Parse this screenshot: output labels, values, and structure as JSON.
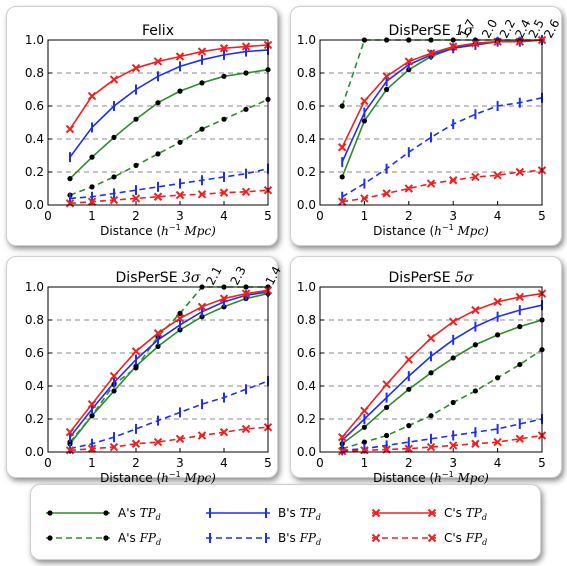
{
  "colors": {
    "A": "#2e8b2e",
    "B": "#1f2ff0",
    "C": "#f02020",
    "grid": "#888888"
  },
  "x_axis_label_prefix": "Distance (",
  "x_axis_label_unit": "h",
  "x_axis_label_exp": "−1",
  "x_axis_label_suffix": " Mpc)",
  "legend": {
    "items": [
      {
        "key": "A_TP",
        "prefix": "A's ",
        "var": "TP",
        "sub": "d"
      },
      {
        "key": "B_TP",
        "prefix": "B's ",
        "var": "TP",
        "sub": "d"
      },
      {
        "key": "C_TP",
        "prefix": "C's ",
        "var": "TP",
        "sub": "d"
      },
      {
        "key": "A_FP",
        "prefix": "A's ",
        "var": "FP",
        "sub": "d"
      },
      {
        "key": "B_FP",
        "prefix": "B's ",
        "var": "FP",
        "sub": "d"
      },
      {
        "key": "C_FP",
        "prefix": "C's ",
        "var": "FP",
        "sub": "d"
      }
    ]
  },
  "chart_data": [
    {
      "type": "line",
      "title": "Felix",
      "title_sigma": "",
      "xlim": [
        0,
        5
      ],
      "ylim": [
        0,
        1
      ],
      "xticks": [
        0,
        1,
        2,
        3,
        4,
        5
      ],
      "yticks": [
        "0.0",
        "0.2",
        "0.4",
        "0.6",
        "0.8",
        "1.0"
      ],
      "x": [
        0.5,
        1.0,
        1.5,
        2.0,
        2.5,
        3.0,
        3.5,
        4.0,
        4.5,
        5.0
      ],
      "series": [
        {
          "key": "A_TP",
          "values": [
            0.16,
            0.29,
            0.41,
            0.52,
            0.62,
            0.69,
            0.74,
            0.78,
            0.8,
            0.82
          ]
        },
        {
          "key": "A_FP",
          "values": [
            0.06,
            0.11,
            0.17,
            0.24,
            0.31,
            0.38,
            0.46,
            0.52,
            0.58,
            0.64
          ]
        },
        {
          "key": "B_TP",
          "values": [
            0.29,
            0.47,
            0.6,
            0.7,
            0.78,
            0.84,
            0.88,
            0.91,
            0.93,
            0.94
          ]
        },
        {
          "key": "B_FP",
          "values": [
            0.04,
            0.05,
            0.07,
            0.09,
            0.11,
            0.13,
            0.15,
            0.17,
            0.19,
            0.22
          ]
        },
        {
          "key": "C_TP",
          "values": [
            0.46,
            0.66,
            0.76,
            0.83,
            0.87,
            0.9,
            0.93,
            0.95,
            0.96,
            0.97
          ]
        },
        {
          "key": "C_FP",
          "values": [
            0.01,
            0.02,
            0.03,
            0.04,
            0.05,
            0.06,
            0.065,
            0.075,
            0.08,
            0.09
          ]
        }
      ],
      "annotations": []
    },
    {
      "type": "line",
      "title": "DisPerSE ",
      "title_sigma": "1σ",
      "xlim": [
        0,
        5
      ],
      "ylim": [
        0,
        1
      ],
      "xticks": [
        0,
        1,
        2,
        3,
        4,
        5
      ],
      "yticks": [
        "0.0",
        "0.2",
        "0.4",
        "0.6",
        "0.8",
        "1.0"
      ],
      "x": [
        0.5,
        1.0,
        1.5,
        2.0,
        2.5,
        3.0,
        3.5,
        4.0,
        4.5,
        5.0
      ],
      "series": [
        {
          "key": "A_TP",
          "values": [
            0.17,
            0.51,
            0.7,
            0.82,
            0.9,
            0.95,
            0.98,
            0.99,
            0.99,
            1.0
          ]
        },
        {
          "key": "A_FP",
          "values": [
            0.6,
            1.0,
            1.0,
            1.0,
            1.0,
            1.0,
            1.0,
            1.0,
            1.0,
            1.0
          ]
        },
        {
          "key": "B_TP",
          "values": [
            0.26,
            0.56,
            0.75,
            0.85,
            0.91,
            0.95,
            0.97,
            0.99,
            0.99,
            1.0
          ]
        },
        {
          "key": "B_FP",
          "values": [
            0.05,
            0.13,
            0.22,
            0.32,
            0.41,
            0.49,
            0.55,
            0.6,
            0.62,
            0.65
          ]
        },
        {
          "key": "C_TP",
          "values": [
            0.35,
            0.63,
            0.78,
            0.87,
            0.92,
            0.96,
            0.98,
            0.99,
            0.99,
            1.0
          ]
        },
        {
          "key": "C_FP",
          "values": [
            0.02,
            0.04,
            0.07,
            0.1,
            0.13,
            0.15,
            0.17,
            0.18,
            0.2,
            0.21
          ]
        }
      ],
      "annotations": [
        {
          "text": "1.7",
          "x": 3.3,
          "y": 1.0
        },
        {
          "text": "2.0",
          "x": 3.8,
          "y": 1.0
        },
        {
          "text": "2.2",
          "x": 4.2,
          "y": 1.0
        },
        {
          "text": "2.4",
          "x": 4.55,
          "y": 1.0
        },
        {
          "text": "2.5",
          "x": 4.85,
          "y": 1.0
        },
        {
          "text": "2.6",
          "x": 5.2,
          "y": 1.0
        }
      ]
    },
    {
      "type": "line",
      "title": "DisPerSE ",
      "title_sigma": "3σ",
      "xlim": [
        0,
        5
      ],
      "ylim": [
        0,
        1
      ],
      "xticks": [
        0,
        1,
        2,
        3,
        4,
        5
      ],
      "yticks": [
        "0.0",
        "0.2",
        "0.4",
        "0.6",
        "0.8",
        "1.0"
      ],
      "x": [
        0.5,
        1.0,
        1.5,
        2.0,
        2.5,
        3.0,
        3.5,
        4.0,
        4.5,
        5.0
      ],
      "series": [
        {
          "key": "A_TP",
          "values": [
            0.05,
            0.22,
            0.37,
            0.52,
            0.64,
            0.74,
            0.82,
            0.88,
            0.93,
            0.96
          ]
        },
        {
          "key": "A_FP",
          "values": [
            0.06,
            0.22,
            0.41,
            0.51,
            0.7,
            0.84,
            1.0,
            1.0,
            1.0,
            1.0
          ]
        },
        {
          "key": "B_TP",
          "values": [
            0.09,
            0.26,
            0.42,
            0.56,
            0.68,
            0.77,
            0.85,
            0.91,
            0.95,
            0.97
          ]
        },
        {
          "key": "B_FP",
          "values": [
            0.02,
            0.05,
            0.09,
            0.14,
            0.19,
            0.24,
            0.29,
            0.33,
            0.38,
            0.43
          ]
        },
        {
          "key": "C_TP",
          "values": [
            0.12,
            0.29,
            0.46,
            0.61,
            0.72,
            0.81,
            0.88,
            0.93,
            0.96,
            0.98
          ]
        },
        {
          "key": "C_FP",
          "values": [
            0.01,
            0.02,
            0.03,
            0.05,
            0.06,
            0.08,
            0.1,
            0.12,
            0.14,
            0.15
          ]
        }
      ],
      "annotations": [
        {
          "text": "2.1",
          "x": 3.75,
          "y": 1.0
        },
        {
          "text": "2.3",
          "x": 4.3,
          "y": 1.0
        },
        {
          "text": "1.4",
          "x": 5.1,
          "y": 1.0
        }
      ]
    },
    {
      "type": "line",
      "title": "DisPerSE ",
      "title_sigma": "5σ",
      "xlim": [
        0,
        5
      ],
      "ylim": [
        0,
        1
      ],
      "xticks": [
        0,
        1,
        2,
        3,
        4,
        5
      ],
      "yticks": [
        "0.0",
        "0.2",
        "0.4",
        "0.6",
        "0.8",
        "1.0"
      ],
      "x": [
        0.5,
        1.0,
        1.5,
        2.0,
        2.5,
        3.0,
        3.5,
        4.0,
        4.5,
        5.0
      ],
      "series": [
        {
          "key": "A_TP",
          "values": [
            0.05,
            0.15,
            0.27,
            0.38,
            0.48,
            0.57,
            0.65,
            0.71,
            0.76,
            0.8
          ]
        },
        {
          "key": "A_FP",
          "values": [
            0.02,
            0.06,
            0.1,
            0.16,
            0.22,
            0.3,
            0.37,
            0.45,
            0.53,
            0.62
          ]
        },
        {
          "key": "B_TP",
          "values": [
            0.07,
            0.2,
            0.33,
            0.46,
            0.58,
            0.68,
            0.76,
            0.82,
            0.86,
            0.89
          ]
        },
        {
          "key": "B_FP",
          "values": [
            0.01,
            0.02,
            0.04,
            0.06,
            0.08,
            0.1,
            0.12,
            0.14,
            0.17,
            0.2
          ]
        },
        {
          "key": "C_TP",
          "values": [
            0.09,
            0.25,
            0.41,
            0.56,
            0.69,
            0.79,
            0.86,
            0.91,
            0.94,
            0.96
          ]
        },
        {
          "key": "C_FP",
          "values": [
            0.005,
            0.01,
            0.015,
            0.02,
            0.03,
            0.04,
            0.05,
            0.06,
            0.08,
            0.1
          ]
        }
      ],
      "annotations": []
    }
  ]
}
